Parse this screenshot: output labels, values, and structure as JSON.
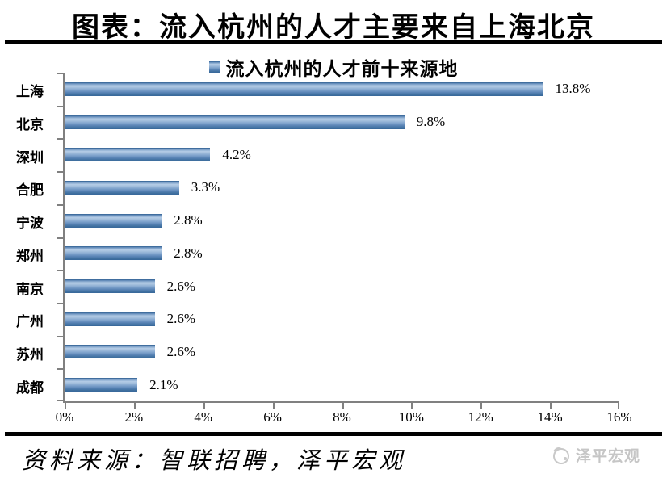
{
  "header": {
    "title": "图表：流入杭州的人才主要来自上海北京"
  },
  "chart_data": {
    "type": "bar",
    "orientation": "horizontal",
    "title": "流入杭州的人才前十来源地",
    "legend_position": "top-center",
    "grid": false,
    "categories": [
      "上海",
      "北京",
      "深圳",
      "合肥",
      "宁波",
      "郑州",
      "南京",
      "广州",
      "苏州",
      "成都"
    ],
    "values": [
      13.8,
      9.8,
      4.2,
      3.3,
      2.8,
      2.8,
      2.6,
      2.6,
      2.6,
      2.1
    ],
    "value_labels": [
      "13.8%",
      "9.8%",
      "4.2%",
      "3.3%",
      "2.8%",
      "2.8%",
      "2.6%",
      "2.6%",
      "2.6%",
      "2.1%"
    ],
    "x_tick_labels": [
      "0%",
      "2%",
      "4%",
      "6%",
      "8%",
      "10%",
      "12%",
      "14%",
      "16%"
    ],
    "xlim": [
      0,
      16
    ],
    "xlabel": "",
    "ylabel": "",
    "bar_color_dark": "#2e5e91",
    "bar_color_light": "#b6cde7",
    "axis_color": "#808080"
  },
  "footer": {
    "source": "资料来源：智联招聘，泽平宏观",
    "watermark": "泽平宏观"
  }
}
